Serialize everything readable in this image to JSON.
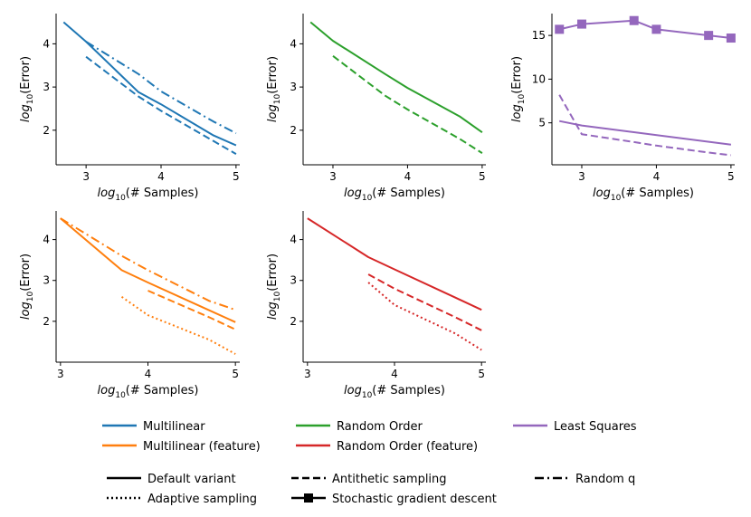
{
  "figure": {
    "xlabel_prefix": "log",
    "xlabel_sub": "10",
    "xlabel_suffix": "(# Samples)",
    "ylabel_prefix": "log",
    "ylabel_sub": "10",
    "ylabel_suffix": "(Error)"
  },
  "legend": {
    "methods": [
      {
        "label": "Multilinear",
        "color": "#1f77b4"
      },
      {
        "label": "Multilinear (feature)",
        "color": "#ff7f0e"
      },
      {
        "label": "Random Order",
        "color": "#2ca02c"
      },
      {
        "label": "Random Order (feature)",
        "color": "#d62728"
      },
      {
        "label": "Least Squares",
        "color": "#9467bd"
      }
    ],
    "variants": [
      {
        "label": "Default variant",
        "style": "solid"
      },
      {
        "label": "Adaptive sampling",
        "style": "dotted"
      },
      {
        "label": "Antithetic sampling",
        "style": "dashed"
      },
      {
        "label": "Stochastic gradient descent",
        "style": "solid-square"
      },
      {
        "label": "Random q",
        "style": "dashdot"
      }
    ]
  },
  "chart_data": [
    {
      "type": "line",
      "name": "Multilinear",
      "xlim": [
        2.6,
        5.05
      ],
      "ylim": [
        1.2,
        4.7
      ],
      "xticks": [
        3,
        4,
        5
      ],
      "yticks": [
        2,
        3,
        4
      ],
      "xlabel": "log10(# Samples)",
      "ylabel": "log10(Error)",
      "series": [
        {
          "name": "Default variant",
          "color": "#1f77b4",
          "style": "solid",
          "x": [
            2.7,
            3.0,
            3.7,
            4.0,
            4.7,
            5.0
          ],
          "y": [
            4.5,
            4.05,
            2.88,
            2.6,
            1.88,
            1.65
          ]
        },
        {
          "name": "Antithetic sampling",
          "color": "#1f77b4",
          "style": "dashed",
          "x": [
            3.0,
            3.7,
            4.0,
            4.7,
            5.0
          ],
          "y": [
            3.7,
            2.78,
            2.45,
            1.75,
            1.45
          ]
        },
        {
          "name": "Random q",
          "color": "#1f77b4",
          "style": "dashdot",
          "x": [
            3.0,
            3.7,
            4.0,
            4.7,
            5.0
          ],
          "y": [
            4.05,
            3.3,
            2.9,
            2.2,
            1.93
          ]
        }
      ]
    },
    {
      "type": "line",
      "name": "Random Order",
      "xlim": [
        2.6,
        5.05
      ],
      "ylim": [
        1.2,
        4.7
      ],
      "xticks": [
        3,
        4,
        5
      ],
      "yticks": [
        2,
        3,
        4
      ],
      "xlabel": "log10(# Samples)",
      "ylabel": "log10(Error)",
      "series": [
        {
          "name": "Default variant",
          "color": "#2ca02c",
          "style": "solid",
          "x": [
            2.7,
            3.0,
            3.7,
            4.0,
            4.7,
            5.0
          ],
          "y": [
            4.5,
            4.07,
            3.3,
            2.98,
            2.32,
            1.95
          ]
        },
        {
          "name": "Antithetic sampling",
          "color": "#2ca02c",
          "style": "dashed",
          "x": [
            3.0,
            3.7,
            4.0,
            4.7,
            5.0
          ],
          "y": [
            3.72,
            2.8,
            2.48,
            1.8,
            1.47
          ]
        }
      ]
    },
    {
      "type": "line",
      "name": "Least Squares",
      "xlim": [
        2.6,
        5.05
      ],
      "ylim": [
        0.2,
        17.5
      ],
      "xticks": [
        3,
        4,
        5
      ],
      "yticks": [
        5,
        10,
        15
      ],
      "xlabel": "log10(# Samples)",
      "ylabel": "log10(Error)",
      "series": [
        {
          "name": "Stochastic gradient descent",
          "color": "#9467bd",
          "style": "solid-square",
          "x": [
            2.7,
            3.0,
            3.7,
            4.0,
            4.7,
            5.0
          ],
          "y": [
            15.7,
            16.3,
            16.7,
            15.7,
            15.0,
            14.7
          ]
        },
        {
          "name": "Default variant",
          "color": "#9467bd",
          "style": "solid",
          "x": [
            2.7,
            3.0,
            5.0
          ],
          "y": [
            5.2,
            4.7,
            2.5
          ]
        },
        {
          "name": "Antithetic sampling",
          "color": "#9467bd",
          "style": "dashed",
          "x": [
            2.7,
            3.0,
            3.7,
            4.0,
            4.7,
            5.0
          ],
          "y": [
            8.2,
            3.7,
            2.8,
            2.4,
            1.6,
            1.3
          ]
        }
      ]
    },
    {
      "type": "line",
      "name": "Multilinear (feature)",
      "xlim": [
        2.95,
        5.05
      ],
      "ylim": [
        1.0,
        4.7
      ],
      "xticks": [
        3,
        4,
        5
      ],
      "yticks": [
        2,
        3,
        4
      ],
      "xlabel": "log10(# Samples)",
      "ylabel": "log10(Error)",
      "series": [
        {
          "name": "Default variant",
          "color": "#ff7f0e",
          "style": "solid",
          "x": [
            3.0,
            3.7,
            4.0,
            4.7,
            5.0
          ],
          "y": [
            4.52,
            3.25,
            2.95,
            2.27,
            1.98
          ]
        },
        {
          "name": "Random q",
          "color": "#ff7f0e",
          "style": "dashdot",
          "x": [
            3.0,
            3.7,
            4.0,
            4.7,
            5.0
          ],
          "y": [
            4.52,
            3.6,
            3.25,
            2.5,
            2.28
          ]
        },
        {
          "name": "Antithetic sampling",
          "color": "#ff7f0e",
          "style": "dashed",
          "x": [
            4.0,
            4.7,
            5.0
          ],
          "y": [
            2.75,
            2.1,
            1.8
          ]
        },
        {
          "name": "Adaptive sampling",
          "color": "#ff7f0e",
          "style": "dotted",
          "x": [
            3.7,
            4.0,
            4.7,
            5.0
          ],
          "y": [
            2.6,
            2.15,
            1.55,
            1.2
          ]
        }
      ]
    },
    {
      "type": "line",
      "name": "Random Order (feature)",
      "xlim": [
        2.95,
        5.05
      ],
      "ylim": [
        1.0,
        4.7
      ],
      "xticks": [
        3,
        4,
        5
      ],
      "yticks": [
        2,
        3,
        4
      ],
      "xlabel": "log10(# Samples)",
      "ylabel": "log10(Error)",
      "series": [
        {
          "name": "Default variant",
          "color": "#d62728",
          "style": "solid",
          "x": [
            3.0,
            3.7,
            4.0,
            4.7,
            5.0
          ],
          "y": [
            4.52,
            3.57,
            3.27,
            2.58,
            2.28
          ]
        },
        {
          "name": "Antithetic sampling",
          "color": "#d62728",
          "style": "dashed",
          "x": [
            3.7,
            4.0,
            4.7,
            5.0
          ],
          "y": [
            3.15,
            2.8,
            2.1,
            1.78
          ]
        },
        {
          "name": "Adaptive sampling",
          "color": "#d62728",
          "style": "dotted",
          "x": [
            3.7,
            4.0,
            4.7,
            5.0
          ],
          "y": [
            2.95,
            2.4,
            1.7,
            1.3
          ]
        }
      ]
    }
  ]
}
